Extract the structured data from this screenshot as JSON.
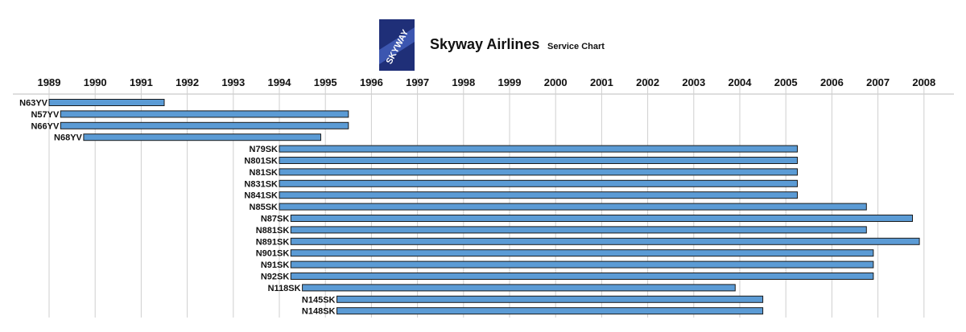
{
  "header": {
    "title": "Skyway Airlines",
    "subtitle": "Service Chart",
    "logo_text": "SKYWAY"
  },
  "colors": {
    "bar_fill": "#5b9bd5",
    "bar_stroke": "#1a1a1a",
    "grid": "#cfcfcf",
    "logo_bg": "#1f2f78"
  },
  "chart_data": {
    "type": "bar",
    "orientation": "horizontal-gantt",
    "title": "Skyway Airlines",
    "subtitle": "Service Chart",
    "xlabel": "",
    "ylabel": "",
    "xlim": [
      1989,
      2008.6
    ],
    "grid": true,
    "x_ticks": [
      "1989",
      "1990",
      "1991",
      "1992",
      "1993",
      "1994",
      "1995",
      "1996",
      "1997",
      "1998",
      "1999",
      "2000",
      "2001",
      "2002",
      "2003",
      "2004",
      "2005",
      "2006",
      "2007",
      "2008"
    ],
    "categories": [
      "N63YV",
      "N57YV",
      "N66YV",
      "N68YV",
      "N79SK",
      "N801SK",
      "N81SK",
      "N831SK",
      "N841SK",
      "N85SK",
      "N87SK",
      "N881SK",
      "N891SK",
      "N901SK",
      "N91SK",
      "N92SK",
      "N118SK",
      "N145SK",
      "N148SK"
    ],
    "series": [
      {
        "start": [
          1989.0,
          1989.25,
          1989.25,
          1989.75,
          1994.0,
          1994.0,
          1994.0,
          1994.0,
          1994.0,
          1994.0,
          1994.25,
          1994.25,
          1994.25,
          1994.25,
          1994.25,
          1994.25,
          1994.5,
          1995.25,
          1995.25
        ],
        "end": [
          1991.5,
          1995.5,
          1995.5,
          1994.9,
          2005.25,
          2005.25,
          2005.25,
          2005.25,
          2005.25,
          2006.75,
          2007.75,
          2006.75,
          2007.9,
          2006.9,
          2006.9,
          2006.9,
          2003.9,
          2004.5,
          2004.5
        ]
      }
    ]
  }
}
